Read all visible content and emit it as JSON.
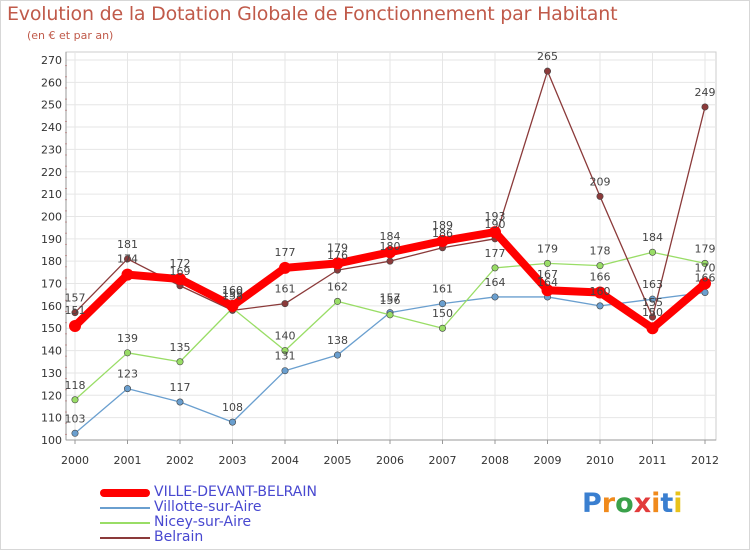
{
  "chart_data": {
    "type": "line",
    "title": "Evolution de la Dotation Globale de Fonctionnement par Habitant",
    "subtitle": "(en € et par an)",
    "xlabel": "",
    "ylabel": "",
    "ylim": [
      100,
      270
    ],
    "yticks": [
      100,
      110,
      120,
      130,
      140,
      150,
      160,
      170,
      180,
      190,
      200,
      210,
      220,
      230,
      240,
      250,
      260,
      270
    ],
    "x": [
      "2000",
      "2001",
      "2002",
      "2003",
      "2004",
      "2005",
      "2006",
      "2007",
      "2008",
      "2009",
      "2010",
      "2011",
      "2012"
    ],
    "grid": true,
    "series": [
      {
        "name": "VILLE-DEVANT-BELRAIN",
        "color": "#ff0000",
        "values": [
          151,
          174,
          172,
          160,
          177,
          179,
          184,
          189,
          193,
          167,
          166,
          150,
          170
        ],
        "labels": [
          "151",
          "174",
          "172",
          "160",
          "177",
          "179",
          "184",
          "189",
          "193",
          "167",
          "166",
          "150",
          "170"
        ]
      },
      {
        "name": "Villotte-sur-Aire",
        "color": "#6a9fcf",
        "values": [
          103,
          123,
          117,
          108,
          131,
          138,
          157,
          161,
          164,
          164,
          160,
          163,
          166
        ],
        "labels": [
          "103",
          "123",
          "117",
          "108",
          "131",
          "138",
          "157",
          "161",
          "164",
          "164",
          "160",
          "163",
          "166"
        ]
      },
      {
        "name": "Nicey-sur-Aire",
        "color": "#99dd66",
        "values": [
          118,
          139,
          135,
          159,
          140,
          162,
          156,
          150,
          177,
          179,
          178,
          184,
          179
        ],
        "labels": [
          "118",
          "139",
          "135",
          "159",
          "140",
          "162",
          "156",
          "150",
          "177",
          "179",
          "178",
          "184",
          "179"
        ]
      },
      {
        "name": "Belrain",
        "color": "#8b3a3a",
        "values": [
          157,
          181,
          169,
          158,
          161,
          176,
          180,
          186,
          190,
          265,
          209,
          155,
          249
        ],
        "labels": [
          "157",
          "181",
          "169",
          "158",
          "161",
          "176",
          "180",
          "186",
          "190",
          "265",
          "209",
          "155",
          "249"
        ]
      }
    ],
    "legend_position": "bottom-left"
  },
  "logo": {
    "letters": [
      "P",
      "r",
      "o",
      "x",
      "i",
      "t",
      "i"
    ],
    "colors": [
      "#3a7fd0",
      "#f08a1c",
      "#3aa14a",
      "#e23a3a",
      "#f08a1c",
      "#3a7fd0",
      "#e8c21a"
    ]
  }
}
